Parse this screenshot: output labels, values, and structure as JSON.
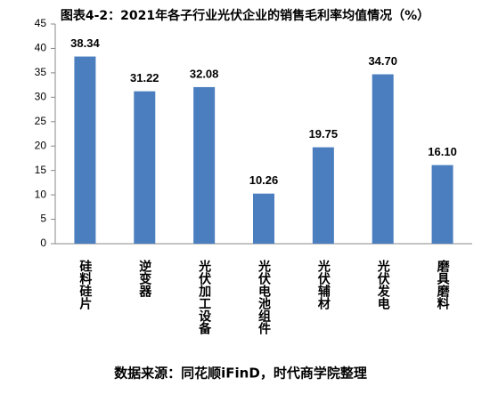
{
  "chart_data": {
    "type": "bar",
    "title": "图表4-2：2021年各子行业光伏企业的销售毛利率均值情况（%）",
    "categories": [
      "硅料硅片",
      "逆变器",
      "光伏加工设备",
      "光伏电池组件",
      "光伏辅材",
      "光伏发电",
      "磨具磨料"
    ],
    "values": [
      38.34,
      31.22,
      32.08,
      10.26,
      19.75,
      34.7,
      16.1
    ],
    "value_labels": [
      "38.34",
      "31.22",
      "32.08",
      "10.26",
      "19.75",
      "34.70",
      "16.10"
    ],
    "color": "#4a7ebf",
    "ylim": [
      0,
      45
    ],
    "yticks": [
      0,
      5,
      10,
      15,
      20,
      25,
      30,
      35,
      40,
      45
    ],
    "grid": false,
    "source": "数据来源：同花顺iFinD，时代商学院整理"
  }
}
